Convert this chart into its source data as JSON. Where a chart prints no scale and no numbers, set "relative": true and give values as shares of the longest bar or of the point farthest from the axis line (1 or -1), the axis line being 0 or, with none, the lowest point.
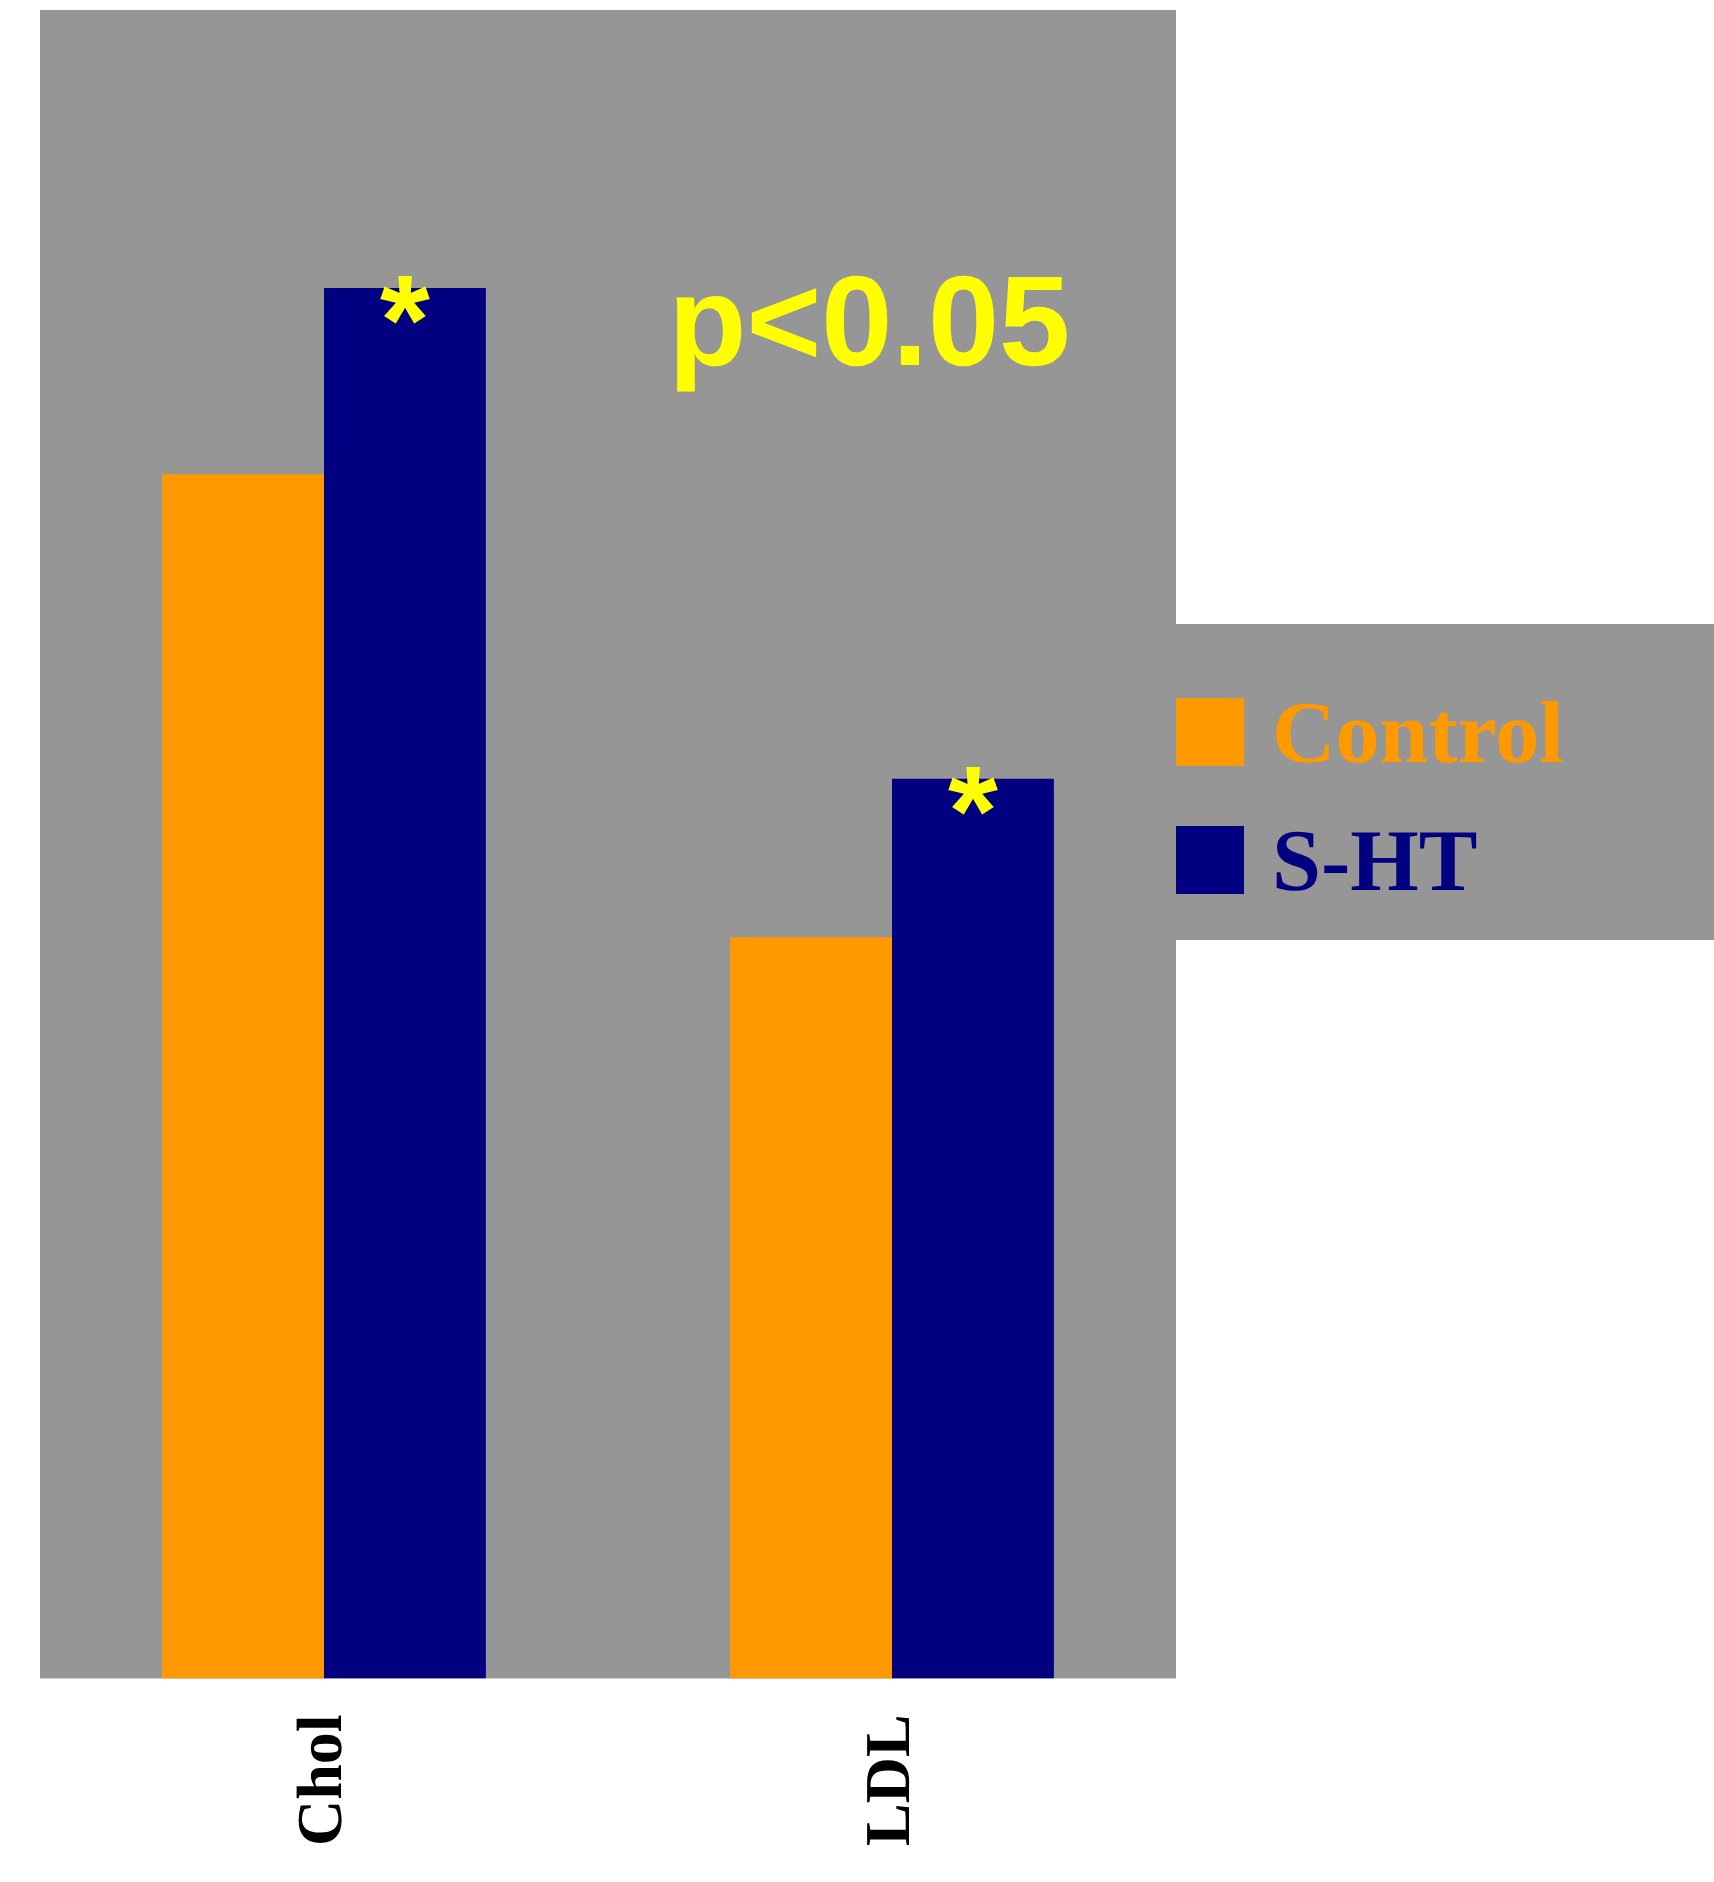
{
  "chart_data": {
    "type": "bar",
    "relative": true,
    "categories": [
      "Chol",
      "LDL"
    ],
    "series": [
      {
        "name": "Control",
        "color": "#ff9900",
        "values": [
          0.866,
          0.533
        ]
      },
      {
        "name": "S-HT",
        "color": "#000080",
        "values": [
          1,
          0.647
        ]
      }
    ],
    "annotations": [
      {
        "text": "*",
        "x": "Chol",
        "y": 1
      },
      {
        "text": "*",
        "x": "LDL",
        "y": 0.647
      },
      "p<0.05"
    ],
    "legend": "right",
    "grid": false
  }
}
